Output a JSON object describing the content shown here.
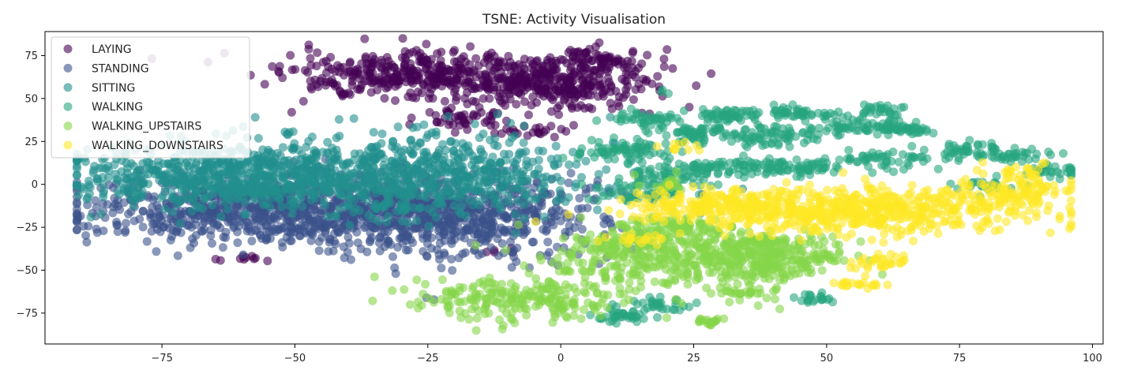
{
  "chart_data": {
    "type": "scatter",
    "title": "TSNE: Activity Visualisation",
    "xlabel": "",
    "ylabel": "",
    "xlim": [
      -97,
      102
    ],
    "ylim": [
      -93,
      89
    ],
    "xticks": [
      -75,
      -50,
      -25,
      0,
      25,
      50,
      75,
      100
    ],
    "xtick_labels": [
      "−75",
      "−50",
      "−25",
      "0",
      "25",
      "50",
      "75",
      "100"
    ],
    "yticks": [
      75,
      50,
      25,
      0,
      -25,
      -50,
      -75
    ],
    "ytick_labels": [
      "75",
      "50",
      "25",
      "0",
      "−25",
      "−50",
      "−75"
    ],
    "grid": false,
    "legend_position": "top-left",
    "point_alpha": 0.6,
    "series": [
      {
        "name": "LAYING",
        "color": "#440154",
        "clusters": [
          {
            "cx": -25,
            "cy": 63,
            "sx": 13,
            "sy": 7,
            "n": 420
          },
          {
            "cx": 0,
            "cy": 58,
            "sx": 9,
            "sy": 7,
            "n": 260
          },
          {
            "cx": 7,
            "cy": 72,
            "sx": 4,
            "sy": 3,
            "n": 70
          },
          {
            "cx": -18,
            "cy": 38,
            "sx": 5,
            "sy": 4,
            "n": 50
          },
          {
            "cx": -5,
            "cy": 31,
            "sx": 3,
            "sy": 2,
            "n": 20
          },
          {
            "cx": -60,
            "cy": -43,
            "sx": 2,
            "sy": 1,
            "n": 10
          },
          {
            "cx": -10,
            "cy": -38,
            "sx": 1.5,
            "sy": 1.5,
            "n": 5
          }
        ]
      },
      {
        "name": "STANDING",
        "color": "#3b528b",
        "clusters": [
          {
            "cx": -55,
            "cy": -15,
            "sx": 17,
            "sy": 10,
            "n": 750
          },
          {
            "cx": -20,
            "cy": -18,
            "sx": 14,
            "sy": 12,
            "n": 650
          }
        ]
      },
      {
        "name": "SITTING",
        "color": "#21908d",
        "clusters": [
          {
            "cx": -62,
            "cy": 5,
            "sx": 15,
            "sy": 9,
            "n": 700
          },
          {
            "cx": -25,
            "cy": 5,
            "sx": 15,
            "sy": 12,
            "n": 650
          }
        ]
      },
      {
        "name": "WALKING",
        "color": "#27a57f",
        "clusters": [
          {
            "cx": 16,
            "cy": 38,
            "sx": 3,
            "sy": 2,
            "n": 40
          },
          {
            "cx": 25,
            "cy": 30,
            "sx": 4,
            "sy": 3,
            "n": 60
          },
          {
            "cx": 33,
            "cy": 40,
            "sx": 4,
            "sy": 2,
            "n": 50
          },
          {
            "cx": 40,
            "cy": 28,
            "sx": 5,
            "sy": 3,
            "n": 70
          },
          {
            "cx": 45,
            "cy": 42,
            "sx": 3,
            "sy": 2,
            "n": 40
          },
          {
            "cx": 55,
            "cy": 35,
            "sx": 5,
            "sy": 3,
            "n": 60
          },
          {
            "cx": 60,
            "cy": 43,
            "sx": 2,
            "sy": 2,
            "n": 25
          },
          {
            "cx": 65,
            "cy": 32,
            "sx": 3,
            "sy": 2,
            "n": 40
          },
          {
            "cx": 60,
            "cy": 14,
            "sx": 5,
            "sy": 3,
            "n": 50
          },
          {
            "cx": 75,
            "cy": 20,
            "sx": 4,
            "sy": 3,
            "n": 40
          },
          {
            "cx": 85,
            "cy": 17,
            "sx": 4,
            "sy": 2,
            "n": 40
          },
          {
            "cx": 93,
            "cy": 8,
            "sx": 3,
            "sy": 2,
            "n": 30
          },
          {
            "cx": 12,
            "cy": 20,
            "sx": 5,
            "sy": 3,
            "n": 70
          },
          {
            "cx": 20,
            "cy": 5,
            "sx": 5,
            "sy": 4,
            "n": 60
          },
          {
            "cx": 15,
            "cy": -5,
            "sx": 5,
            "sy": 3,
            "n": 50
          },
          {
            "cx": 30,
            "cy": 10,
            "sx": 4,
            "sy": 3,
            "n": 50
          },
          {
            "cx": 40,
            "cy": 10,
            "sx": 4,
            "sy": 2,
            "n": 40
          },
          {
            "cx": 47,
            "cy": 10,
            "sx": 3,
            "sy": 2,
            "n": 30
          },
          {
            "cx": 80,
            "cy": 0,
            "sx": 3,
            "sy": 2,
            "n": 20
          },
          {
            "cx": 48,
            "cy": -66,
            "sx": 2,
            "sy": 2,
            "n": 20
          },
          {
            "cx": 12,
            "cy": -77,
            "sx": 3,
            "sy": 2,
            "n": 40
          },
          {
            "cx": 18,
            "cy": -70,
            "sx": 4,
            "sy": 2,
            "n": 30
          },
          {
            "cx": 20,
            "cy": 53,
            "sx": 1,
            "sy": 1,
            "n": 3
          }
        ]
      },
      {
        "name": "WALKING_UPSTAIRS",
        "color": "#86d549",
        "clusters": [
          {
            "cx": -8,
            "cy": -67,
            "sx": 10,
            "sy": 6,
            "n": 230
          },
          {
            "cx": 23,
            "cy": -43,
            "sx": 13,
            "sy": 8,
            "n": 400
          },
          {
            "cx": 20,
            "cy": -25,
            "sx": 6,
            "sy": 4,
            "n": 100
          },
          {
            "cx": 38,
            "cy": -35,
            "sx": 6,
            "sy": 4,
            "n": 100
          },
          {
            "cx": 40,
            "cy": -50,
            "sx": 4,
            "sy": 3,
            "n": 50
          },
          {
            "cx": 35,
            "cy": -62,
            "sx": 3,
            "sy": 2,
            "n": 30
          },
          {
            "cx": 28,
            "cy": -80,
            "sx": 2,
            "sy": 1,
            "n": 20
          },
          {
            "cx": 10,
            "cy": -35,
            "sx": 3,
            "sy": 2,
            "n": 30
          },
          {
            "cx": 48,
            "cy": -42,
            "sx": 4,
            "sy": 2,
            "n": 30
          },
          {
            "cx": 20,
            "cy": 0,
            "sx": 2,
            "sy": 2,
            "n": 20
          }
        ]
      },
      {
        "name": "WALKING_DOWNSTAIRS",
        "color": "#fde725",
        "clusters": [
          {
            "cx": 55,
            "cy": -15,
            "sx": 18,
            "sy": 7,
            "n": 600
          },
          {
            "cx": 27,
            "cy": -12,
            "sx": 7,
            "sy": 4,
            "n": 150
          },
          {
            "cx": 85,
            "cy": -5,
            "sx": 5,
            "sy": 6,
            "n": 90
          },
          {
            "cx": 87,
            "cy": 7,
            "sx": 2,
            "sy": 3,
            "n": 20
          },
          {
            "cx": 60,
            "cy": -45,
            "sx": 3,
            "sy": 2,
            "n": 30
          },
          {
            "cx": 55,
            "cy": -58,
            "sx": 3,
            "sy": 1.5,
            "n": 20
          },
          {
            "cx": 15,
            "cy": -32,
            "sx": 3,
            "sy": 2,
            "n": 20
          },
          {
            "cx": 22,
            "cy": 22,
            "sx": 2,
            "sy": 2,
            "n": 10
          }
        ]
      }
    ]
  }
}
